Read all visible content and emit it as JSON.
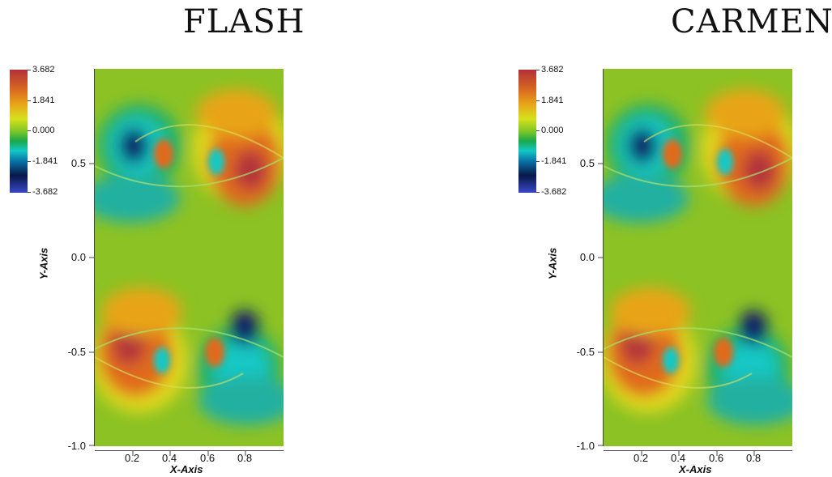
{
  "panels": [
    {
      "id": "left",
      "title": "FLASH",
      "colorbar_labels": [
        "3.682",
        "1.841",
        "0.000",
        "-1.841",
        "-3.682"
      ],
      "y_ticks": [
        "0.5",
        "0.0",
        "-0.5",
        "-1.0"
      ],
      "x_ticks": [
        "0.2",
        "0.4",
        "0.6",
        "0.8"
      ],
      "y_axis_label": "Y-Axis",
      "x_axis_label": "X-Axis"
    },
    {
      "id": "right",
      "title": "CARMEN",
      "colorbar_labels": [
        "3.682",
        "1.841",
        "0.000",
        "-1.841",
        "-3.682"
      ],
      "y_ticks": [
        "0.5",
        "0.0",
        "-0.5",
        "-1.0"
      ],
      "x_ticks": [
        "0.2",
        "0.4",
        "0.6",
        "0.8"
      ],
      "y_axis_label": "Y-Axis",
      "x_axis_label": "X-Axis"
    }
  ],
  "colors": {
    "red": "#b2303a",
    "orange": "#e06a1c",
    "yellow": "#e0d81e",
    "green": "#8cc224",
    "cyan": "#18c8c4",
    "blue": "#101c6a"
  }
}
